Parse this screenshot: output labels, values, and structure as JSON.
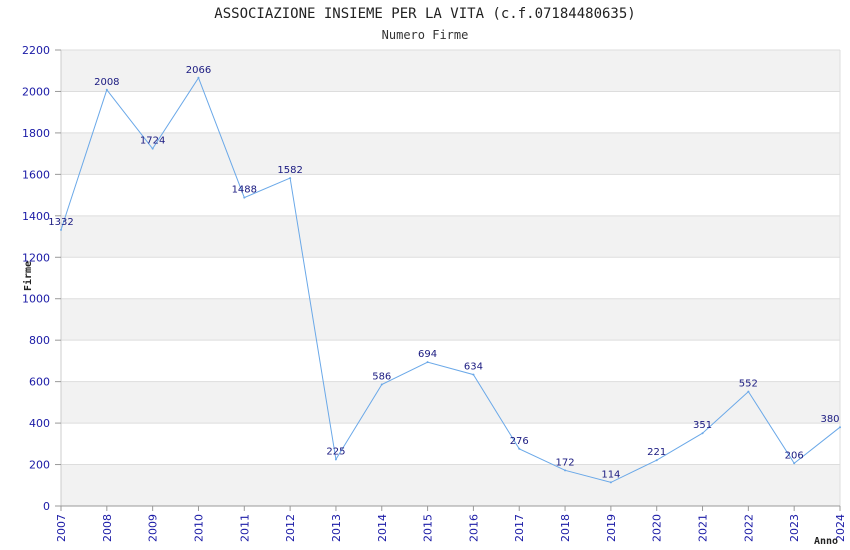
{
  "chart_data": {
    "type": "line",
    "title": "ASSOCIAZIONE INSIEME PER LA VITA (c.f.07184480635)",
    "subtitle": "Numero Firme",
    "xlabel": "Anno",
    "ylabel": "Firme",
    "x": [
      "2007",
      "2008",
      "2009",
      "2010",
      "2011",
      "2012",
      "2013",
      "2014",
      "2015",
      "2016",
      "2017",
      "2018",
      "2019",
      "2020",
      "2021",
      "2022",
      "2023",
      "2024"
    ],
    "series": [
      {
        "values": [
          1332,
          2008,
          1724,
          2066,
          1488,
          1582,
          225,
          586,
          694,
          634,
          276,
          172,
          114,
          221,
          351,
          552,
          206,
          380
        ]
      }
    ],
    "ylim": [
      0,
      2200
    ],
    "yticks": [
      0,
      200,
      400,
      600,
      800,
      1000,
      1200,
      1400,
      1600,
      1800,
      2000,
      2200
    ],
    "grid": true,
    "colors": {
      "line": "#6aa8e8",
      "band": "#f2f2f2",
      "grid": "#dddddd",
      "tick_text": "#1a1aa6"
    }
  }
}
